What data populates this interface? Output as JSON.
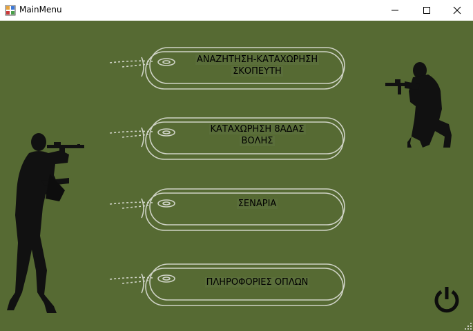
{
  "window": {
    "title": "MainMenu",
    "background": "#566a33"
  },
  "menu": {
    "items": [
      {
        "line1": "ΑΝΑΖΗΤΗΣΗ-ΚΑΤΑΧΩΡΗΣΗ",
        "line2": "ΣΚΟΠΕΥΤΗ"
      },
      {
        "line1": "ΚΑΤΑΧΩΡΗΣΗ 8ΑΔΑΣ",
        "line2": "ΒΟΛΗΣ"
      },
      {
        "line1": "ΣΕΝΑΡΙΑ",
        "line2": ""
      },
      {
        "line1": "ΠΛΗΡΟΦΟΡΙΕΣ ΟΠΛΩΝ",
        "line2": ""
      }
    ]
  },
  "icons": {
    "power": "power-icon",
    "soldier_left": "soldier-aiming-rifle",
    "soldier_right": "soldier-kneeling-rifle"
  }
}
